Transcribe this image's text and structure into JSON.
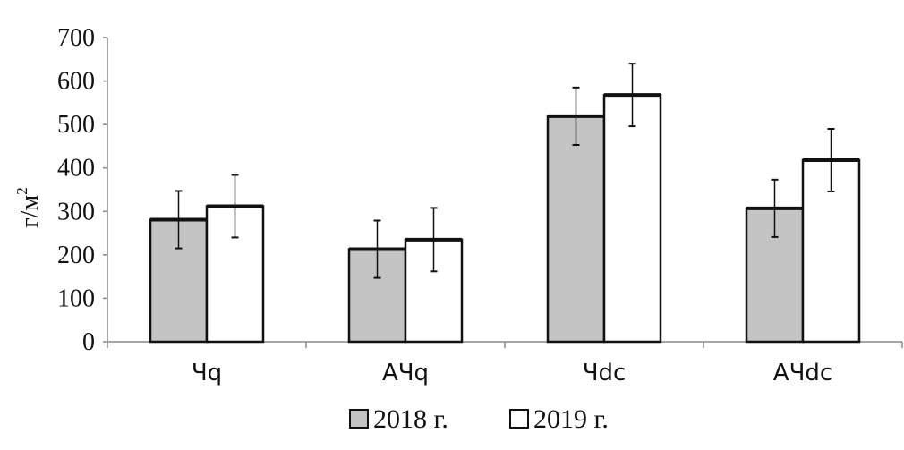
{
  "chart_data": {
    "type": "bar",
    "title": "",
    "xlabel": "",
    "ylabel": "г/м",
    "ylabel_superscript": "2",
    "ylim": [
      0,
      700
    ],
    "yticks": [
      0,
      100,
      200,
      300,
      400,
      500,
      600,
      700
    ],
    "categories": [
      "Чq",
      "АЧq",
      "Чdc",
      "АЧdc"
    ],
    "series": [
      {
        "name": "2018 г.",
        "color": "#c4c4c4",
        "values": [
          281,
          213,
          519,
          307
        ],
        "error": [
          66,
          66,
          66,
          66
        ]
      },
      {
        "name": "2019 г.",
        "color": "#ffffff",
        "values": [
          312,
          235,
          568,
          418
        ],
        "error": [
          72,
          73,
          72,
          72
        ]
      }
    ],
    "legend": "bottom",
    "grid": false
  }
}
